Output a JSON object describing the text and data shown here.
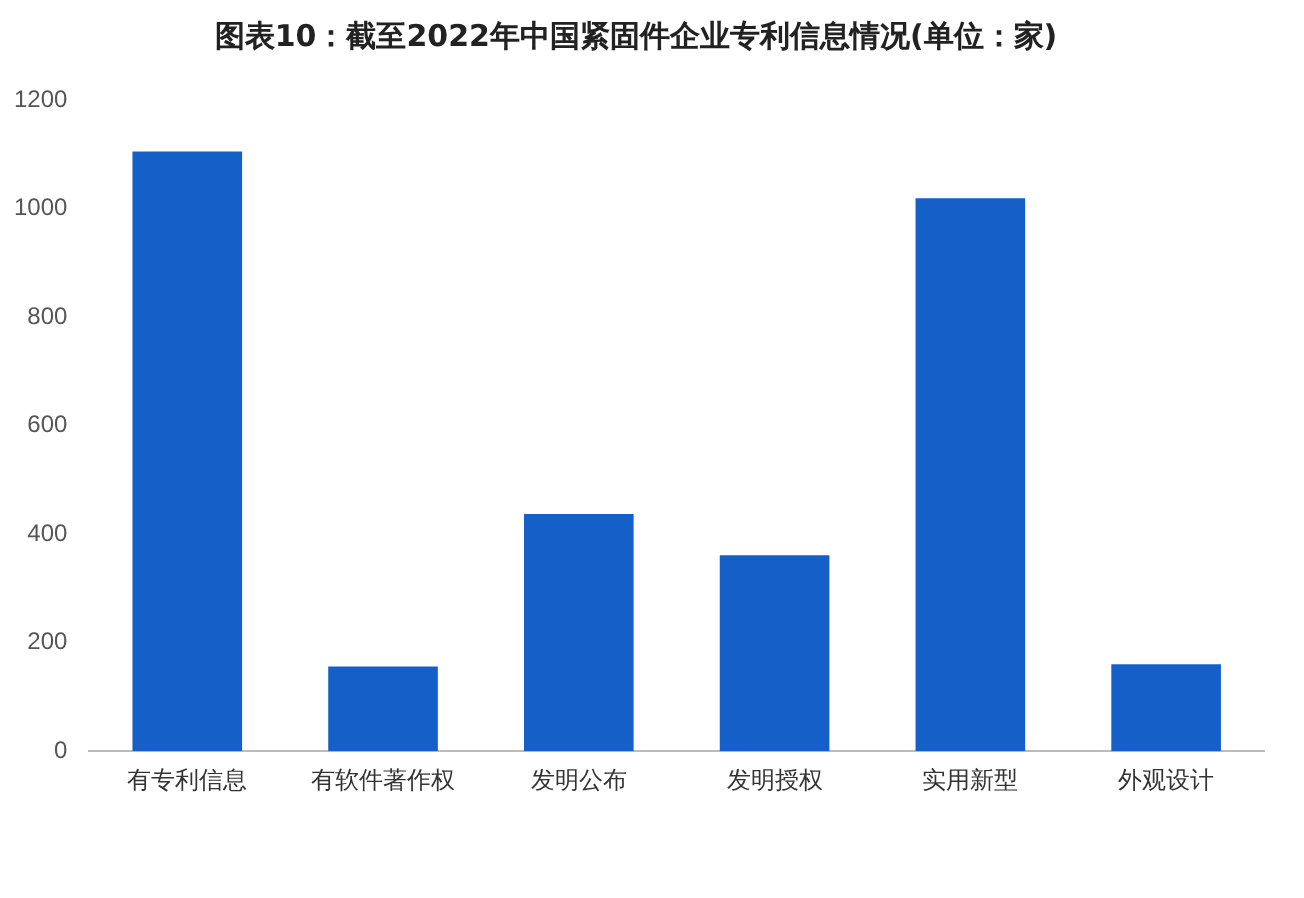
{
  "chart_data": {
    "type": "bar",
    "title": "图表10：截至2022年中国紧固件企业专利信息情况(单位：家)",
    "categories": [
      "有专利信息",
      "有软件著作权",
      "发明公布",
      "发明授权",
      "实用新型",
      "外观设计"
    ],
    "values": [
      1105,
      156,
      437,
      361,
      1019,
      160
    ],
    "color": "#1560c8",
    "ylim": [
      0,
      1200
    ],
    "yticks": [
      0,
      200,
      400,
      600,
      800,
      1000,
      1200
    ],
    "grid": false,
    "legend": false
  }
}
